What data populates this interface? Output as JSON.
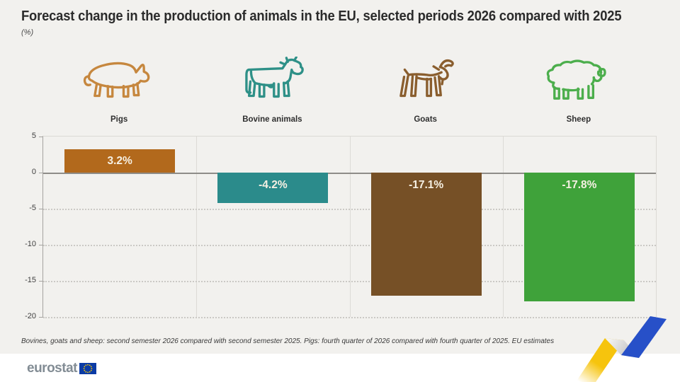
{
  "header": {
    "title": "Forecast change in the production of animals in the EU, selected periods 2026 compared with 2025",
    "subtitle": "(%)"
  },
  "chart_data": {
    "type": "bar",
    "categories": [
      "Pigs",
      "Bovine animals",
      "Goats",
      "Sheep"
    ],
    "values": [
      3.2,
      -4.2,
      -17.1,
      -17.8
    ],
    "value_labels": [
      "3.2%",
      "-4.2%",
      "-17.1%",
      "-17.8%"
    ],
    "bar_colors": [
      "#b2691c",
      "#2b8b8b",
      "#765026",
      "#3fa23a"
    ],
    "icon_colors": [
      "#c6873e",
      "#2e9087",
      "#8a5e2e",
      "#4cae4c"
    ],
    "icon_names": [
      "pig-icon",
      "cow-icon",
      "goat-icon",
      "sheep-icon"
    ],
    "ylim": [
      -20,
      5
    ],
    "yticks": [
      5,
      0,
      -5,
      -10,
      -15,
      -20
    ],
    "grid": "horizontal dotted below zero, solid zero line, light vertical category separators",
    "legend": "none",
    "label_text_color": "#f6f0e3"
  },
  "footnote": "Bovines, goats and sheep: second semester 2026 compared with second semester 2025. Pigs: fourth quarter of 2026 compared with fourth quarter of 2025. EU estimates",
  "footer": {
    "logo_text": "eurostat",
    "flag_icon": "eu-flag-icon",
    "ribbon_icon": "zigzag-ribbon-decoration",
    "ribbon_colors": {
      "yellow": "#f6c40d",
      "grey": "#c0c0c0",
      "blue": "#2750c8"
    }
  }
}
